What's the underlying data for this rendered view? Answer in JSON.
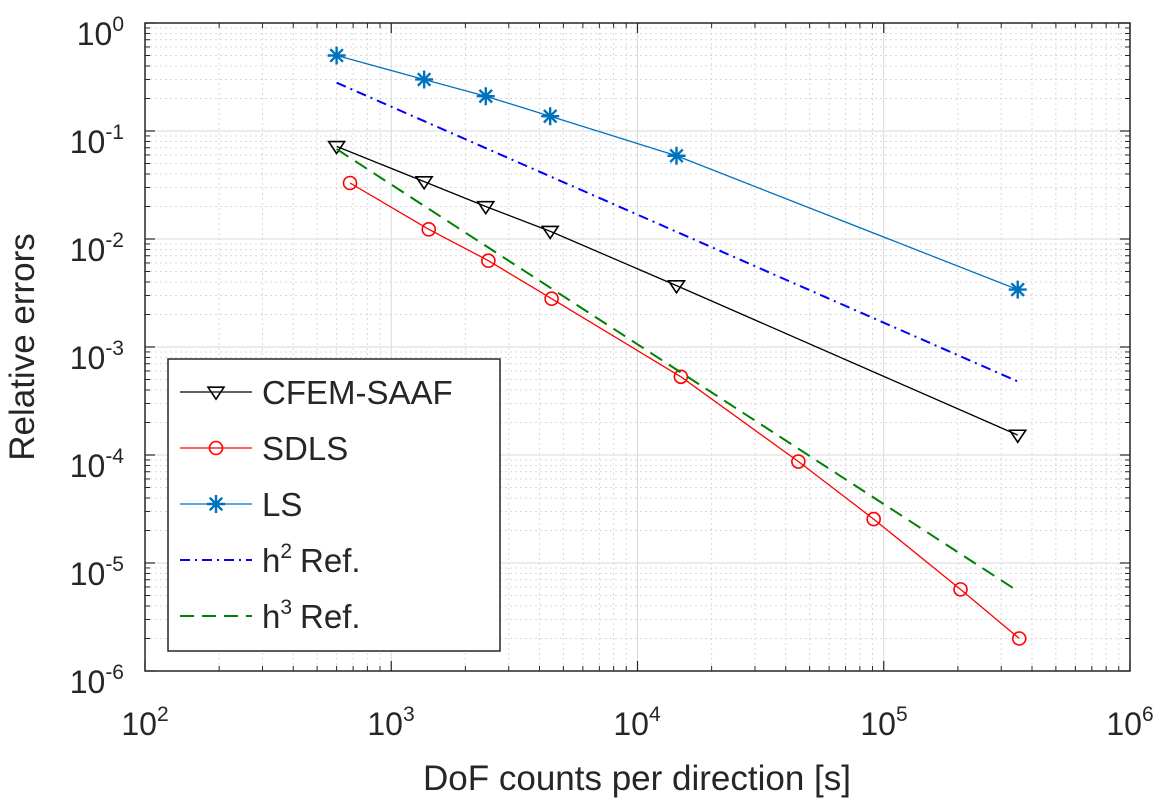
{
  "chart_data": {
    "type": "line",
    "xscale": "log",
    "yscale": "log",
    "xlim": [
      100,
      1000000
    ],
    "ylim": [
      1e-06,
      1
    ],
    "xlabel": "DoF counts per direction [s]",
    "ylabel": "Relative errors",
    "grid": true,
    "minor_grid": true,
    "legend_position": "bottom-left",
    "x_ticks": [
      {
        "base": "10",
        "exp": "2"
      },
      {
        "base": "10",
        "exp": "3"
      },
      {
        "base": "10",
        "exp": "4"
      },
      {
        "base": "10",
        "exp": "5"
      },
      {
        "base": "10",
        "exp": "6"
      }
    ],
    "y_ticks": [
      {
        "base": "10",
        "exp": "0"
      },
      {
        "base": "10",
        "exp": "-1"
      },
      {
        "base": "10",
        "exp": "-2"
      },
      {
        "base": "10",
        "exp": "-3"
      },
      {
        "base": "10",
        "exp": "-4"
      },
      {
        "base": "10",
        "exp": "-5"
      },
      {
        "base": "10",
        "exp": "-6"
      }
    ],
    "series": [
      {
        "name": "CFEM-SAAF",
        "legend_label": "CFEM-SAAF",
        "color": "#000000",
        "marker": "triangle-down",
        "line_style": "solid",
        "x": [
          600,
          1360,
          2420,
          4420,
          14400,
          350000
        ],
        "y": [
          0.072,
          0.034,
          0.02,
          0.0118,
          0.0037,
          0.000153
        ]
      },
      {
        "name": "SDLS",
        "legend_label": "SDLS",
        "color": "#ff0000",
        "marker": "circle",
        "line_style": "solid",
        "x": [
          680,
          1420,
          2480,
          4480,
          15000,
          45000,
          91000,
          205000,
          355000
        ],
        "y": [
          0.033,
          0.0123,
          0.0063,
          0.0028,
          0.00053,
          8.7e-05,
          2.55e-05,
          5.7e-06,
          2e-06
        ]
      },
      {
        "name": "LS",
        "legend_label": "LS",
        "color": "#0072bd",
        "marker": "asterisk",
        "line_style": "solid",
        "x": [
          600,
          1360,
          2420,
          4420,
          14400,
          350000
        ],
        "y": [
          0.5,
          0.3,
          0.21,
          0.137,
          0.059,
          0.0034
        ]
      },
      {
        "name": "h2 Ref.",
        "legend_base": "h",
        "legend_exp": "2",
        "legend_suffix": "Ref.",
        "color": "#0000ff",
        "marker": "none",
        "line_style": "dash-dot",
        "x": [
          600,
          350000
        ],
        "y": [
          0.28,
          0.00048
        ]
      },
      {
        "name": "h3 Ref.",
        "legend_base": "h",
        "legend_exp": "3",
        "legend_suffix": "Ref.",
        "color": "#008000",
        "marker": "none",
        "line_style": "dashed",
        "x": [
          600,
          350000
        ],
        "y": [
          0.068,
          5.5e-06
        ]
      }
    ]
  }
}
